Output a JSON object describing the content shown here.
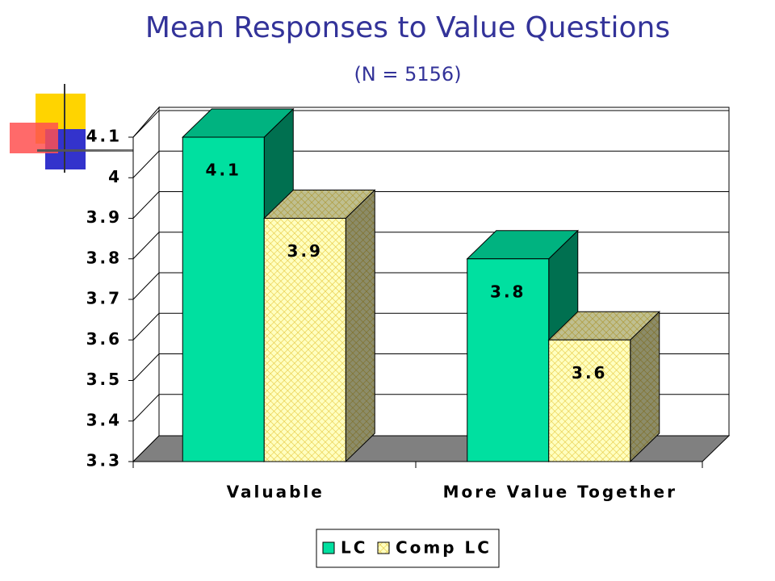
{
  "chart_data": {
    "type": "bar3d",
    "title": "Mean Responses to Value Questions",
    "subtitle": "(N = 5156)",
    "categories": [
      "Valuable",
      "More Value Together"
    ],
    "series": [
      {
        "name": "LC",
        "color": "#00e0a0",
        "values": [
          4.1,
          3.8
        ]
      },
      {
        "name": "Comp LC",
        "color": "#ffffc0",
        "values": [
          3.9,
          3.6
        ]
      }
    ],
    "ylim": [
      3.3,
      4.1
    ],
    "yticks": [
      3.3,
      3.4,
      3.5,
      3.6,
      3.7,
      3.8,
      3.9,
      4,
      4.1
    ],
    "grid": true,
    "legend": "bottom"
  }
}
